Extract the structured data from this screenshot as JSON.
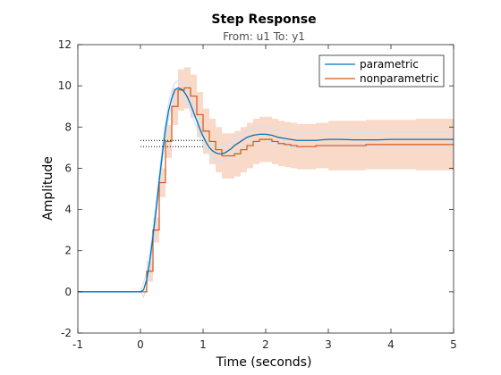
{
  "chart_data": {
    "type": "line",
    "title": "Step Response",
    "subtitle": "From: u1  To: y1",
    "xlabel": "Time (seconds)",
    "ylabel": "Amplitude",
    "xlim": [
      -1,
      5
    ],
    "ylim": [
      -2,
      12
    ],
    "xticks": [
      "-1",
      "0",
      "1",
      "2",
      "3",
      "4",
      "5"
    ],
    "yticks": [
      "-2",
      "0",
      "2",
      "4",
      "6",
      "8",
      "10",
      "12"
    ],
    "grid": false,
    "legend_position": "top-right",
    "steady_state_marker": {
      "y": 7.35,
      "x": [
        0,
        1.0
      ]
    },
    "series": [
      {
        "name": "parametric",
        "style": "line",
        "color": "#0072BD",
        "band_color": "#cfe3f5",
        "x": [
          -1,
          0,
          0.05,
          0.1,
          0.15,
          0.2,
          0.25,
          0.3,
          0.35,
          0.4,
          0.45,
          0.5,
          0.55,
          0.6,
          0.65,
          0.7,
          0.75,
          0.8,
          0.85,
          0.9,
          0.95,
          1.0,
          1.05,
          1.1,
          1.15,
          1.2,
          1.25,
          1.3,
          1.35,
          1.4,
          1.45,
          1.5,
          1.6,
          1.7,
          1.8,
          1.9,
          2.0,
          2.1,
          2.2,
          2.3,
          2.4,
          2.5,
          2.6,
          2.7,
          2.8,
          2.9,
          3.0,
          3.2,
          3.4,
          3.6,
          3.8,
          4.0,
          4.2,
          4.4,
          4.6,
          4.8,
          5.0
        ],
        "values": [
          0,
          0,
          0.1,
          0.6,
          1.5,
          2.7,
          4.0,
          5.4,
          6.7,
          7.9,
          8.8,
          9.4,
          9.8,
          9.9,
          9.85,
          9.7,
          9.45,
          9.1,
          8.7,
          8.3,
          7.9,
          7.55,
          7.25,
          7.0,
          6.85,
          6.75,
          6.7,
          6.7,
          6.75,
          6.85,
          6.95,
          7.1,
          7.3,
          7.5,
          7.6,
          7.65,
          7.65,
          7.6,
          7.5,
          7.45,
          7.4,
          7.35,
          7.35,
          7.35,
          7.35,
          7.38,
          7.4,
          7.4,
          7.38,
          7.38,
          7.38,
          7.4,
          7.4,
          7.4,
          7.4,
          7.4,
          7.4
        ],
        "band_halfwidth": 0.35
      },
      {
        "name": "nonparametric",
        "style": "step",
        "color": "#D95319",
        "band_color": "#f9d9c8",
        "x": [
          -1,
          0,
          0.1,
          0.2,
          0.3,
          0.4,
          0.5,
          0.6,
          0.7,
          0.8,
          0.9,
          1.0,
          1.1,
          1.2,
          1.3,
          1.4,
          1.5,
          1.6,
          1.7,
          1.8,
          1.9,
          2.0,
          2.1,
          2.2,
          2.3,
          2.4,
          2.5,
          2.6,
          2.7,
          2.8,
          2.9,
          3.0,
          3.2,
          3.4,
          3.6,
          3.8,
          4.0,
          4.2,
          4.4,
          4.6,
          4.8,
          5.0
        ],
        "values": [
          0,
          0,
          1.0,
          3.0,
          5.3,
          7.3,
          9.0,
          9.8,
          9.9,
          9.5,
          8.6,
          7.8,
          7.3,
          6.9,
          6.6,
          6.6,
          6.7,
          6.9,
          7.1,
          7.3,
          7.4,
          7.4,
          7.3,
          7.2,
          7.15,
          7.1,
          7.05,
          7.05,
          7.05,
          7.1,
          7.1,
          7.1,
          7.1,
          7.1,
          7.15,
          7.15,
          7.15,
          7.15,
          7.15,
          7.15,
          7.15,
          7.15
        ],
        "band_halfwidth": [
          0,
          0,
          0.5,
          0.6,
          0.7,
          0.8,
          0.9,
          1.0,
          1.0,
          1.05,
          1.1,
          1.1,
          1.1,
          1.1,
          1.1,
          1.1,
          1.1,
          1.1,
          1.1,
          1.1,
          1.1,
          1.1,
          1.1,
          1.1,
          1.1,
          1.1,
          1.1,
          1.1,
          1.1,
          1.1,
          1.1,
          1.2,
          1.2,
          1.2,
          1.2,
          1.2,
          1.2,
          1.2,
          1.25,
          1.25,
          1.25,
          1.25
        ]
      }
    ]
  }
}
